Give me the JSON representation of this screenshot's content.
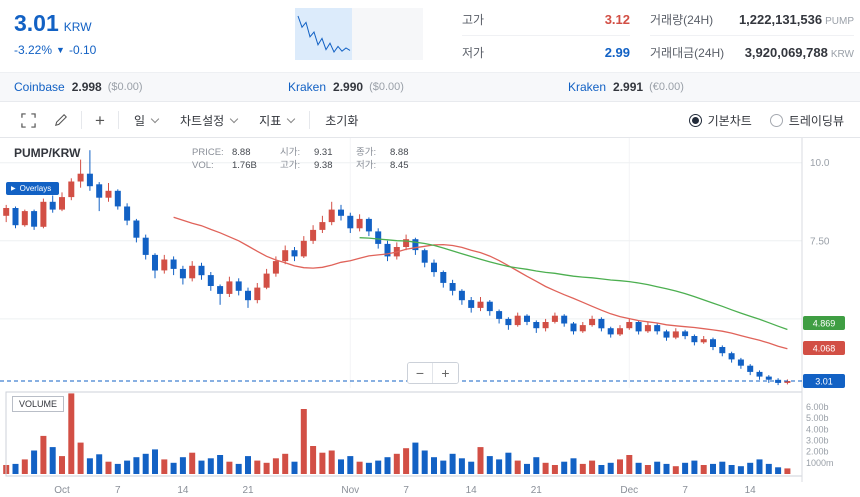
{
  "header": {
    "price": "3.01",
    "currency": "KRW",
    "change_pct": "-3.22%",
    "change_arrow": "▼",
    "change_abs": "-0.10",
    "stats": [
      {
        "label": "고가",
        "value": "3.12"
      },
      {
        "label": "저가",
        "value": "2.99"
      },
      {
        "label": "거래량(24H)",
        "value": "1,222,131,536",
        "unit": "PUMP"
      },
      {
        "label": "거래대금(24H)",
        "value": "3,920,069,788",
        "unit": "KRW"
      }
    ]
  },
  "exchanges": [
    {
      "name": "Coinbase",
      "price": "2.998",
      "sub": "($0.00)"
    },
    {
      "name": "Kraken",
      "price": "2.990",
      "sub": "($0.00)"
    },
    {
      "name": "Kraken",
      "price": "2.991",
      "sub": "(€0.00)"
    }
  ],
  "toolbar": {
    "interval": "일",
    "chart_settings": "차트설정",
    "indicators": "지표",
    "reset": "초기화",
    "radio_basic": "기본차트",
    "radio_tradingview": "트레이딩뷰",
    "zoom_out": "−",
    "zoom_in": "+"
  },
  "chart": {
    "pair": "PUMP/KRW",
    "overlays": "Overlays",
    "overlays_icon": "▶",
    "volume_label": "VOLUME",
    "legend": {
      "price_label": "PRICE:",
      "price": "8.88",
      "open_label": "시가:",
      "open": "9.31",
      "close_label": "종가:",
      "close": "8.88",
      "vol_label": "VOL:",
      "vol": "1.76B",
      "high_label": "고가:",
      "high": "9.38",
      "low_label": "저가:",
      "low": "8.45"
    }
  },
  "sparkline": {
    "values": [
      3.44,
      3.3,
      3.36,
      3.18,
      3.24,
      3.08,
      3.16,
      3.02,
      3.1,
      2.99,
      3.06,
      3.0,
      3.04,
      3.01
    ],
    "area_fill": "#dcebfb",
    "bg_fill": "#f6f7f9"
  },
  "colors": {
    "up": "#d24f45",
    "down": "#1261c4",
    "accent_blue": "#1261c4",
    "ma_red": "#e0635a",
    "ma_green": "#4caf50"
  },
  "chart_data": {
    "type": "candlestick",
    "pair": "PUMP/KRW",
    "current_price": 3.01,
    "ma_periods": {
      "red": 20,
      "green": 40
    },
    "price_grid": [
      {
        "value": 10.0,
        "label": "10.0"
      },
      {
        "value": 7.5,
        "label": "7.50"
      },
      {
        "value": 5.0,
        "label": ""
      }
    ],
    "price_tags": [
      {
        "value": 4.869,
        "label": "4.869",
        "color": "#3f9e43"
      },
      {
        "value": 4.068,
        "label": "4.068",
        "color": "#d24f45"
      },
      {
        "value": 3.01,
        "label": "3.01",
        "color": "#1261c4"
      }
    ],
    "vol_ticks": [
      "6.00b",
      "5.00b",
      "4.00b",
      "3.00b",
      "2.00b",
      "1000m"
    ],
    "x_ticks": [
      {
        "i": 7,
        "label": "Oct"
      },
      {
        "i": 13,
        "label": "7"
      },
      {
        "i": 20,
        "label": "14"
      },
      {
        "i": 27,
        "label": "21"
      },
      {
        "i": 38,
        "label": "Nov"
      },
      {
        "i": 44,
        "label": "7"
      },
      {
        "i": 51,
        "label": "14"
      },
      {
        "i": 58,
        "label": "21"
      },
      {
        "i": 68,
        "label": "Dec"
      },
      {
        "i": 74,
        "label": "7"
      },
      {
        "i": 81,
        "label": "14"
      }
    ],
    "v_grid_idx": [
      38,
      68
    ],
    "candles": [
      [
        8.85,
        8.95,
        8.15,
        8.3
      ],
      [
        8.3,
        8.65,
        8.1,
        8.55
      ],
      [
        8.55,
        8.6,
        7.9,
        8.0
      ],
      [
        8.0,
        8.5,
        7.95,
        8.45
      ],
      [
        8.45,
        8.5,
        7.85,
        7.95
      ],
      [
        7.95,
        8.85,
        7.9,
        8.75
      ],
      [
        8.75,
        8.95,
        8.4,
        8.5
      ],
      [
        8.5,
        9.05,
        8.45,
        8.9
      ],
      [
        8.9,
        9.5,
        8.8,
        9.4
      ],
      [
        9.4,
        10.1,
        9.2,
        9.65
      ],
      [
        9.65,
        10.4,
        9.1,
        9.25
      ],
      [
        9.31,
        9.38,
        8.45,
        8.88
      ],
      [
        8.88,
        9.35,
        8.75,
        9.1
      ],
      [
        9.1,
        9.15,
        8.5,
        8.6
      ],
      [
        8.6,
        8.7,
        8.0,
        8.15
      ],
      [
        8.15,
        8.2,
        7.45,
        7.6
      ],
      [
        7.6,
        7.7,
        6.9,
        7.05
      ],
      [
        7.05,
        7.1,
        6.3,
        6.55
      ],
      [
        6.55,
        7.05,
        6.45,
        6.9
      ],
      [
        6.9,
        7.0,
        6.4,
        6.6
      ],
      [
        6.6,
        6.7,
        6.1,
        6.3
      ],
      [
        6.3,
        6.85,
        6.2,
        6.7
      ],
      [
        6.7,
        6.8,
        6.25,
        6.4
      ],
      [
        6.4,
        6.5,
        5.9,
        6.05
      ],
      [
        6.05,
        6.1,
        5.45,
        5.8
      ],
      [
        5.8,
        6.35,
        5.7,
        6.2
      ],
      [
        6.2,
        6.3,
        5.75,
        5.9
      ],
      [
        5.9,
        6.0,
        5.35,
        5.6
      ],
      [
        5.6,
        6.15,
        5.5,
        6.0
      ],
      [
        6.0,
        6.6,
        5.95,
        6.45
      ],
      [
        6.45,
        7.0,
        6.35,
        6.85
      ],
      [
        6.85,
        7.35,
        6.75,
        7.2
      ],
      [
        7.2,
        7.3,
        6.85,
        7.0
      ],
      [
        7.0,
        7.65,
        6.95,
        7.5
      ],
      [
        7.5,
        8.0,
        7.4,
        7.85
      ],
      [
        7.85,
        8.3,
        7.75,
        8.1
      ],
      [
        8.1,
        8.75,
        8.0,
        8.5
      ],
      [
        8.5,
        8.65,
        8.15,
        8.3
      ],
      [
        8.3,
        8.4,
        7.75,
        7.9
      ],
      [
        7.9,
        8.35,
        7.8,
        8.2
      ],
      [
        8.2,
        8.25,
        7.65,
        7.8
      ],
      [
        7.8,
        7.9,
        7.25,
        7.4
      ],
      [
        7.4,
        7.5,
        6.85,
        7.0
      ],
      [
        7.0,
        7.45,
        6.9,
        7.3
      ],
      [
        7.3,
        7.7,
        7.2,
        7.55
      ],
      [
        7.55,
        7.6,
        7.05,
        7.2
      ],
      [
        7.2,
        7.25,
        6.65,
        6.8
      ],
      [
        6.8,
        6.9,
        6.35,
        6.5
      ],
      [
        6.5,
        6.55,
        6.0,
        6.15
      ],
      [
        6.15,
        6.25,
        5.75,
        5.9
      ],
      [
        5.9,
        5.95,
        5.45,
        5.6
      ],
      [
        5.6,
        5.7,
        5.2,
        5.35
      ],
      [
        5.35,
        5.7,
        5.25,
        5.55
      ],
      [
        5.55,
        5.6,
        5.1,
        5.25
      ],
      [
        5.25,
        5.3,
        4.85,
        5.0
      ],
      [
        5.0,
        5.05,
        4.65,
        4.8
      ],
      [
        4.8,
        5.2,
        4.75,
        5.1
      ],
      [
        5.1,
        5.15,
        4.8,
        4.9
      ],
      [
        4.9,
        4.95,
        4.55,
        4.7
      ],
      [
        4.7,
        5.0,
        4.6,
        4.9
      ],
      [
        4.9,
        5.2,
        4.85,
        5.1
      ],
      [
        5.1,
        5.15,
        4.75,
        4.85
      ],
      [
        4.85,
        4.9,
        4.5,
        4.6
      ],
      [
        4.6,
        4.9,
        4.55,
        4.8
      ],
      [
        4.8,
        5.1,
        4.75,
        5.0
      ],
      [
        5.0,
        5.05,
        4.6,
        4.7
      ],
      [
        4.7,
        4.75,
        4.4,
        4.5
      ],
      [
        4.5,
        4.8,
        4.45,
        4.7
      ],
      [
        4.7,
        5.0,
        4.65,
        4.9
      ],
      [
        4.9,
        4.95,
        4.5,
        4.6
      ],
      [
        4.6,
        4.9,
        4.55,
        4.8
      ],
      [
        4.8,
        4.85,
        4.5,
        4.6
      ],
      [
        4.6,
        4.65,
        4.3,
        4.4
      ],
      [
        4.4,
        4.7,
        4.35,
        4.6
      ],
      [
        4.6,
        4.65,
        4.35,
        4.45
      ],
      [
        4.45,
        4.5,
        4.15,
        4.25
      ],
      [
        4.25,
        4.45,
        4.2,
        4.35
      ],
      [
        4.35,
        4.4,
        4.0,
        4.1
      ],
      [
        4.1,
        4.15,
        3.8,
        3.9
      ],
      [
        3.9,
        3.95,
        3.6,
        3.7
      ],
      [
        3.7,
        3.75,
        3.4,
        3.5
      ],
      [
        3.5,
        3.55,
        3.2,
        3.3
      ],
      [
        3.3,
        3.35,
        3.05,
        3.15
      ],
      [
        3.15,
        3.2,
        2.95,
        3.05
      ],
      [
        3.05,
        3.1,
        2.88,
        2.95
      ],
      [
        2.95,
        3.06,
        2.9,
        3.01
      ]
    ],
    "volumes": [
      1.1,
      0.8,
      0.9,
      1.3,
      2.1,
      3.4,
      2.4,
      1.6,
      7.2,
      2.8,
      1.4,
      1.76,
      1.1,
      0.9,
      1.2,
      1.5,
      1.8,
      2.2,
      1.3,
      1.0,
      1.5,
      1.9,
      1.2,
      1.4,
      1.7,
      1.1,
      0.9,
      1.6,
      1.2,
      1.0,
      1.4,
      1.8,
      1.1,
      5.8,
      2.5,
      1.9,
      2.1,
      1.3,
      1.6,
      1.1,
      1.0,
      1.2,
      1.5,
      1.8,
      2.3,
      2.8,
      2.1,
      1.5,
      1.2,
      1.8,
      1.4,
      1.1,
      2.4,
      1.6,
      1.3,
      1.9,
      1.2,
      0.9,
      1.5,
      1.0,
      0.8,
      1.1,
      1.4,
      0.9,
      1.2,
      0.8,
      1.0,
      1.3,
      1.7,
      1.0,
      0.8,
      1.1,
      0.9,
      0.7,
      1.0,
      1.2,
      0.8,
      0.9,
      1.1,
      0.8,
      0.7,
      1.0,
      1.3,
      0.9,
      0.6,
      0.5
    ]
  }
}
